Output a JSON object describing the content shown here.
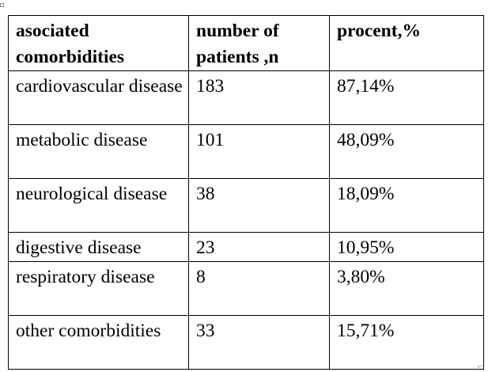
{
  "table": {
    "headers": [
      "asociated comorbidities",
      "number of patients ,n",
      "procent,%"
    ],
    "rows": [
      [
        "cardiovascular disease",
        "183",
        "87,14%"
      ],
      [
        "metabolic disease",
        "101",
        "48,09%"
      ],
      [
        "neurological disease",
        "38",
        "18,09%"
      ],
      [
        "digestive disease",
        "23",
        "10,95%"
      ],
      [
        "respiratory disease",
        "8",
        "3,80%"
      ],
      [
        "other comorbidities",
        "33",
        "15,71%"
      ]
    ]
  }
}
